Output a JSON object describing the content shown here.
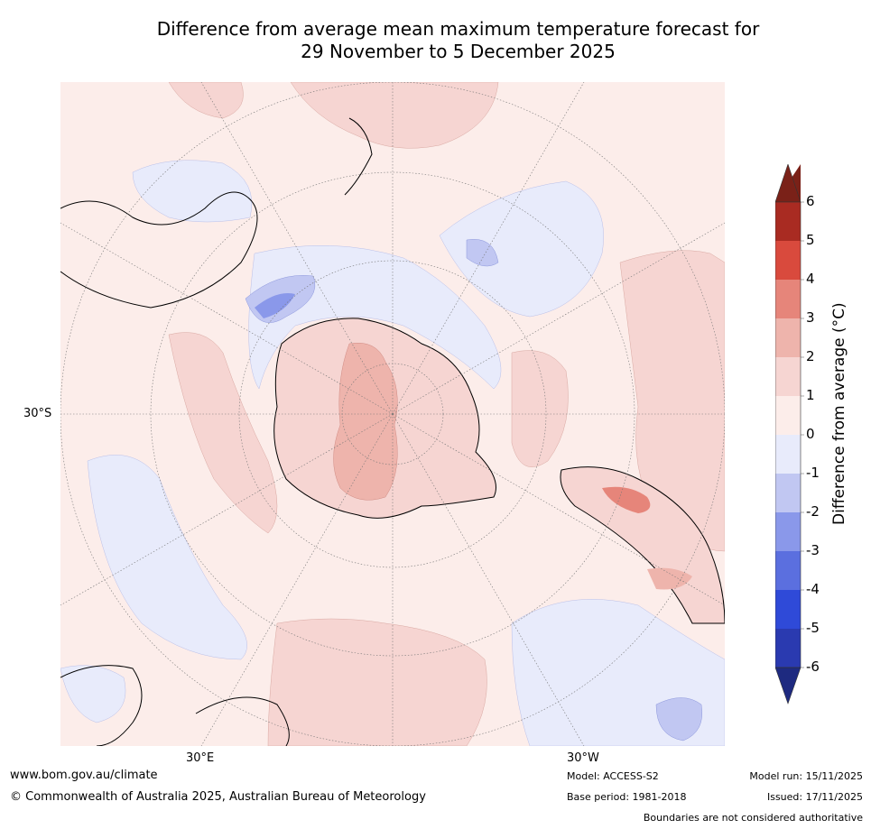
{
  "title": {
    "line1": "Difference from average mean maximum temperature forecast for",
    "line2": "29 November to 5 December 2025"
  },
  "map": {
    "projection": "south-polar stereographic",
    "lat_label": "30°S",
    "lon_labels": {
      "east": "30°E",
      "west": "30°W"
    }
  },
  "colorbar": {
    "label": "Difference from average (°C)",
    "ticks": [
      "6",
      "5",
      "4",
      "3",
      "2",
      "1",
      "0",
      "-1",
      "-2",
      "-3",
      "-4",
      "-5",
      "-6"
    ],
    "colors": {
      "above_6": "#7a2118",
      "5_6": "#a92b22",
      "4_5": "#d94a3d",
      "3_4": "#e6857a",
      "2_3": "#eeb4ac",
      "1_2": "#f6d5d2",
      "0_1": "#fcedea",
      "m1_0": "#e8ebfb",
      "m2_m1": "#c1c7f2",
      "m3_m2": "#8a98ea",
      "m4_m3": "#5b6fdf",
      "m5_m4": "#2f4ad8",
      "m6_m5": "#2a3ab0",
      "below_m6": "#1e2a80"
    }
  },
  "footer": {
    "website": "www.bom.gov.au/climate",
    "copyright": "© Commonwealth of Australia 2025, Australian Bureau of Meteorology",
    "model": "Model: ACCESS-S2",
    "base_period": "Base period: 1981-2018",
    "model_run": "Model run: 15/11/2025",
    "issued": "Issued: 17/11/2025",
    "disclaimer": "Boundaries are not considered authoritative"
  }
}
